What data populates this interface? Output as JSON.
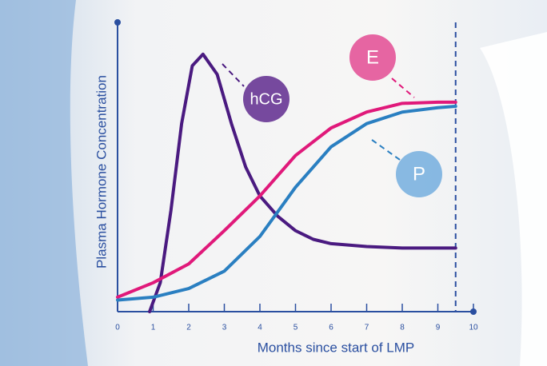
{
  "chart_data": {
    "type": "line",
    "xlabel": "Months since start of LMP",
    "ylabel": "Plasma Hormone Concentration",
    "xlim": [
      0,
      10
    ],
    "xticks": [
      0,
      1,
      2,
      3,
      4,
      5,
      6,
      7,
      8,
      9,
      10
    ],
    "ylim": [
      0,
      100
    ],
    "marker_x": 9.5,
    "series": [
      {
        "name": "hCG",
        "color": "#4a1a80",
        "x": [
          0.9,
          1.2,
          1.5,
          1.8,
          2.1,
          2.4,
          2.8,
          3.2,
          3.6,
          4.0,
          4.5,
          5,
          5.5,
          6,
          7,
          8,
          9.5
        ],
        "values": [
          0,
          10,
          35,
          65,
          85,
          89,
          82,
          65,
          50,
          40,
          33,
          28,
          25,
          23.5,
          22.5,
          22,
          22
        ]
      },
      {
        "name": "E",
        "color": "#e0197a",
        "x": [
          0,
          1,
          2,
          3,
          4,
          5,
          6,
          7,
          8,
          9,
          9.5
        ],
        "values": [
          5,
          10,
          16.5,
          28,
          40,
          54,
          63.5,
          69,
          72,
          72.4,
          72.4
        ]
      },
      {
        "name": "P",
        "color": "#2a7fc1",
        "x": [
          0,
          1,
          2,
          3,
          4,
          5,
          6,
          7,
          8,
          9,
          9.5
        ],
        "values": [
          4,
          5,
          8,
          14,
          26,
          43,
          57,
          65,
          69,
          70.5,
          71
        ]
      }
    ]
  }
}
